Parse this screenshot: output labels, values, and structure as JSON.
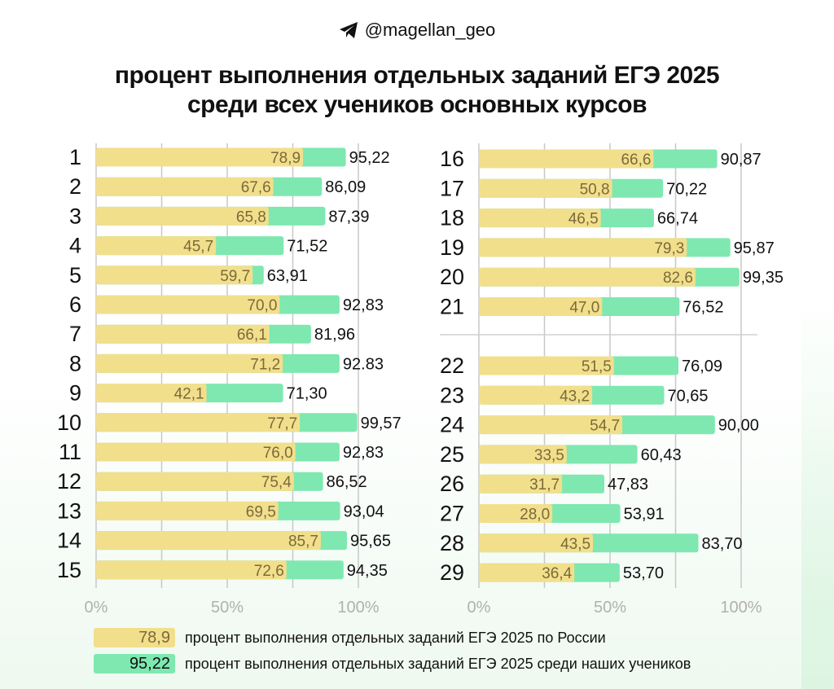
{
  "header": {
    "handle": "@magellan_geo",
    "icon": "telegram-icon"
  },
  "chart_data": {
    "type": "bar",
    "title": [
      "процент выполнения отдельных заданий ЕГЭ 2025",
      "среди всех учеников основных курсов"
    ],
    "xlabel": "",
    "ylabel": "",
    "xlim": [
      0,
      100
    ],
    "x_ticks": [
      "0%",
      "50%",
      "100%"
    ],
    "grid": true,
    "legend_placement": "bottom",
    "categories": [
      "1",
      "2",
      "3",
      "4",
      "5",
      "6",
      "7",
      "8",
      "9",
      "10",
      "11",
      "12",
      "13",
      "14",
      "15",
      "16",
      "17",
      "18",
      "19",
      "20",
      "21",
      "22",
      "23",
      "24",
      "25",
      "26",
      "27",
      "28",
      "29"
    ],
    "series": [
      {
        "name": "процент выполнения отдельных заданий ЕГЭ 2025 по России",
        "color": "#f2df8c",
        "values": [
          78.9,
          67.6,
          65.8,
          45.7,
          59.7,
          70.0,
          66.1,
          71.2,
          42.1,
          77.7,
          76.0,
          75.4,
          69.5,
          85.7,
          72.6,
          66.6,
          50.8,
          46.5,
          79.3,
          82.6,
          47.0,
          51.5,
          43.2,
          54.7,
          33.5,
          31.7,
          28.0,
          43.5,
          36.4
        ],
        "labels": [
          "78,9",
          "67,6",
          "65,8",
          "45,7",
          "59,7",
          "70,0",
          "66,1",
          "71,2",
          "42,1",
          "77,7",
          "76,0",
          "75,4",
          "69,5",
          "85,7",
          "72,6",
          "66,6",
          "50,8",
          "46,5",
          "79,3",
          "82,6",
          "47,0",
          "51,5",
          "43,2",
          "54,7",
          "33,5",
          "31,7",
          "28,0",
          "43,5",
          "36,4"
        ]
      },
      {
        "name": "процент выполнения отдельных заданий ЕГЭ 2025 среди наших учеников",
        "color": "#7ee8b0",
        "values": [
          95.22,
          86.09,
          87.39,
          71.52,
          63.91,
          92.83,
          81.96,
          92.83,
          71.3,
          99.57,
          92.83,
          86.52,
          93.04,
          95.65,
          94.35,
          90.87,
          70.22,
          66.74,
          95.87,
          99.35,
          76.52,
          76.09,
          70.65,
          90.0,
          60.43,
          47.83,
          53.91,
          83.7,
          53.7
        ],
        "labels": [
          "95,22",
          "86,09",
          "87,39",
          "71,52",
          "63,91",
          "92,83",
          "81,96",
          "92.83",
          "71,30",
          "99,57",
          "92,83",
          "86,52",
          "93,04",
          "95,65",
          "94,35",
          "90,87",
          "70,22",
          "66,74",
          "95,87",
          "99,35",
          "76,52",
          "76,09",
          "70,65",
          "90,00",
          "60,43",
          "47,83",
          "53,91",
          "83,70",
          "53,70"
        ]
      }
    ]
  },
  "legend": [
    {
      "sample": "78,9",
      "text": "процент выполнения отдельных заданий ЕГЭ 2025 по России"
    },
    {
      "sample": "95,22",
      "text": "процент выполнения отдельных заданий ЕГЭ 2025 среди наших учеников"
    }
  ]
}
